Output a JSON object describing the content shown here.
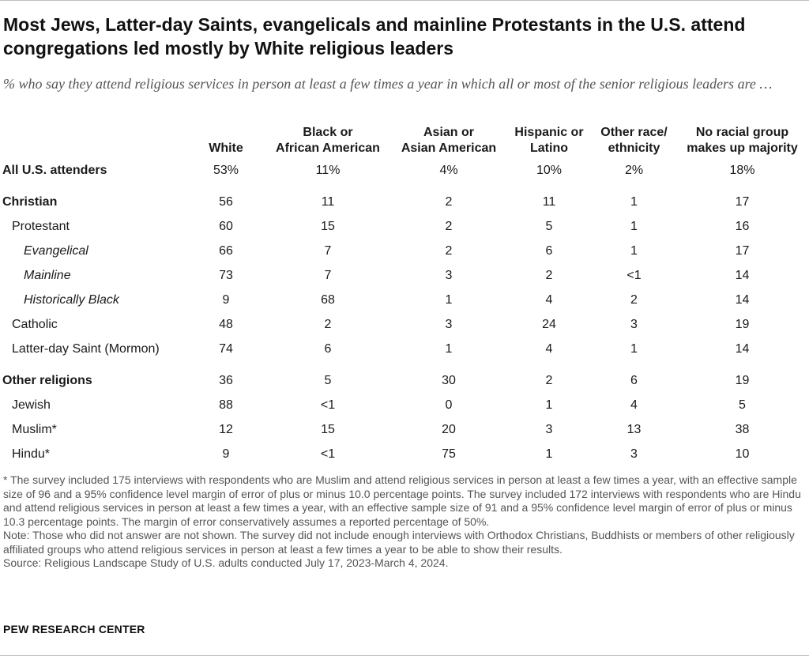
{
  "title": "Most Jews, Latter-day Saints, evangelicals and mainline Protestants in the U.S. attend congregations led mostly by White religious leaders",
  "subtitle": "% who say they attend religious services in person at least a few times a year in which all or most of the senior religious leaders are …",
  "columns": [
    {
      "line1": "",
      "line2": "White"
    },
    {
      "line1": "Black or",
      "line2": "African American"
    },
    {
      "line1": "Asian or",
      "line2": "Asian American"
    },
    {
      "line1": "Hispanic or",
      "line2": "Latino"
    },
    {
      "line1": "Other race/",
      "line2": "ethnicity"
    },
    {
      "line1": "No racial group",
      "line2": "makes up majority"
    }
  ],
  "chart_data": {
    "type": "table",
    "columns": [
      "White",
      "Black or African American",
      "Asian or Asian American",
      "Hispanic or Latino",
      "Other race/ ethnicity",
      "No racial group makes up majority"
    ],
    "rows": [
      {
        "label": "All U.S. attenders",
        "values": [
          "53%",
          "11%",
          "4%",
          "10%",
          "2%",
          "18%"
        ]
      },
      {
        "label": "Christian",
        "values": [
          "56",
          "11",
          "2",
          "11",
          "1",
          "17"
        ]
      },
      {
        "label": "Protestant",
        "values": [
          "60",
          "15",
          "2",
          "5",
          "1",
          "16"
        ]
      },
      {
        "label": "Evangelical",
        "values": [
          "66",
          "7",
          "2",
          "6",
          "1",
          "17"
        ]
      },
      {
        "label": "Mainline",
        "values": [
          "73",
          "7",
          "3",
          "2",
          "<1",
          "14"
        ]
      },
      {
        "label": "Historically Black",
        "values": [
          "9",
          "68",
          "1",
          "4",
          "2",
          "14"
        ]
      },
      {
        "label": "Catholic",
        "values": [
          "48",
          "2",
          "3",
          "24",
          "3",
          "19"
        ]
      },
      {
        "label": "Latter-day Saint (Mormon)",
        "values": [
          "74",
          "6",
          "1",
          "4",
          "1",
          "14"
        ]
      },
      {
        "label": "Other religions",
        "values": [
          "36",
          "5",
          "30",
          "2",
          "6",
          "19"
        ]
      },
      {
        "label": "Jewish",
        "values": [
          "88",
          "<1",
          "0",
          "1",
          "4",
          "5"
        ]
      },
      {
        "label": "Muslim*",
        "values": [
          "12",
          "15",
          "20",
          "3",
          "13",
          "38"
        ]
      },
      {
        "label": "Hindu*",
        "values": [
          "9",
          "<1",
          "75",
          "1",
          "3",
          "10"
        ]
      }
    ]
  },
  "footnotes": [
    "* The survey included 175 interviews with respondents who are Muslim and attend religious services in person at least a few times a year, with an effective sample size of 96 and a 95% confidence level margin of error of plus or minus 10.0 percentage points. The survey included 172 interviews with respondents who are Hindu and attend religious services in person at least a few times a year, with an effective sample size of 91 and a 95% confidence level margin of error of plus or minus 10.3 percentage points. The margin of error conservatively assumes a reported percentage of 50%.",
    "Note: Those who did not answer are not shown. The survey did not include enough interviews with Orthodox Christians, Buddhists or members of other religiously affiliated groups who attend religious services in person at least a few times a year to be able to show their results.",
    "Source: Religious Landscape Study of U.S. adults conducted July 17, 2023-March 4, 2024."
  ],
  "brand": "PEW RESEARCH CENTER"
}
